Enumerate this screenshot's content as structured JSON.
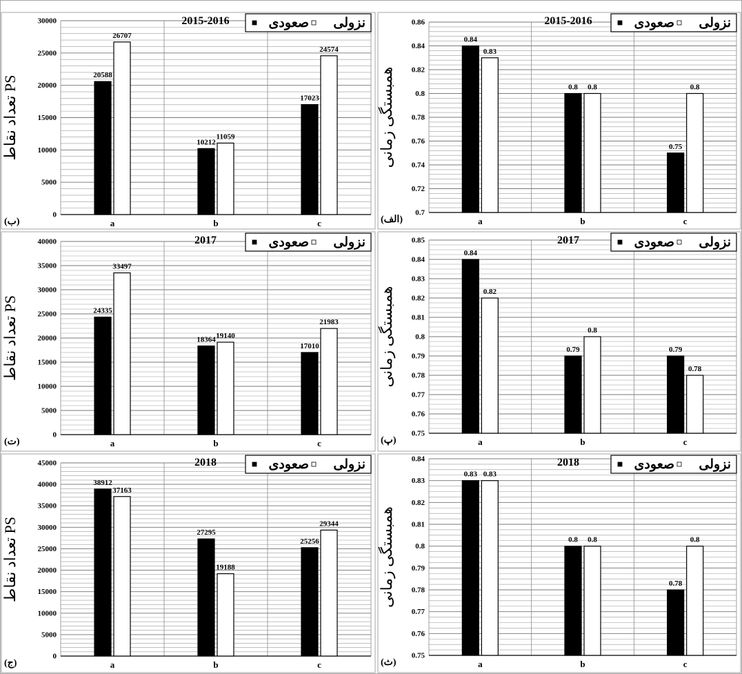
{
  "legend_labels": {
    "desc": "نزولی",
    "asc": "صعودی"
  },
  "colors": {
    "desc": "#000000",
    "asc": "#ffffff",
    "frame": "#a6a6a6",
    "grid": "#9a9a9a"
  },
  "chart_data": [
    {
      "type": "bar",
      "id": "count-2015",
      "panel_label": "(ب)",
      "title": "2015-2016",
      "ylabel": "تعداد نقاط PS",
      "categories": [
        "a",
        "b",
        "c"
      ],
      "series": [
        {
          "name": "نزولی",
          "values": [
            20588,
            10212,
            17023
          ]
        },
        {
          "name": "صعودی",
          "values": [
            26707,
            11059,
            24574
          ]
        }
      ],
      "value_labels": [
        [
          "20588",
          "10212",
          "17023"
        ],
        [
          "26707",
          "11059",
          "24574"
        ]
      ],
      "ylim": [
        0,
        30000
      ],
      "yticks": [
        0,
        5000,
        10000,
        15000,
        20000,
        25000,
        30000
      ],
      "ytick_labels": [
        "0",
        "5000",
        "10000",
        "15000",
        "20000",
        "25000",
        "30000"
      ],
      "grid_step": 1000,
      "legend_position": "top-right",
      "grid": true
    },
    {
      "type": "bar",
      "id": "corr-2015",
      "panel_label": "(الف)",
      "title": "2015-2016",
      "ylabel": "همبستگی زمانی",
      "categories": [
        "a",
        "b",
        "c"
      ],
      "series": [
        {
          "name": "نزولی",
          "values": [
            0.84,
            0.8,
            0.75
          ]
        },
        {
          "name": "صعودی",
          "values": [
            0.83,
            0.8,
            0.8
          ]
        }
      ],
      "value_labels": [
        [
          "0.84",
          "0.8",
          "0.75"
        ],
        [
          "0.83",
          "0.8",
          "0.8"
        ]
      ],
      "ylim": [
        0.7,
        0.86
      ],
      "yticks": [
        0.7,
        0.72,
        0.74,
        0.76,
        0.78,
        0.8,
        0.82,
        0.84,
        0.86
      ],
      "ytick_labels": [
        "0.7",
        "0.72",
        "0.74",
        "0.76",
        "0.78",
        "0.8",
        "0.82",
        "0.84",
        "0.86"
      ],
      "grid_step": 0.004,
      "legend_position": "top-right",
      "grid": true
    },
    {
      "type": "bar",
      "id": "count-2017",
      "panel_label": "(ت)",
      "title": "2017",
      "ylabel": "تعداد نقاط PS",
      "categories": [
        "a",
        "b",
        "c"
      ],
      "series": [
        {
          "name": "نزولی",
          "values": [
            24335,
            18364,
            17010
          ]
        },
        {
          "name": "صعودی",
          "values": [
            33497,
            19140,
            21983
          ]
        }
      ],
      "value_labels": [
        [
          "24335",
          "18364",
          "17010"
        ],
        [
          "33497",
          "19140",
          "21983"
        ]
      ],
      "ylim": [
        0,
        40000
      ],
      "yticks": [
        0,
        5000,
        10000,
        15000,
        20000,
        25000,
        30000,
        35000,
        40000
      ],
      "ytick_labels": [
        "0",
        "5000",
        "10000",
        "15000",
        "20000",
        "25000",
        "30000",
        "35000",
        "40000"
      ],
      "grid_step": 1000,
      "legend_position": "top-right",
      "grid": true
    },
    {
      "type": "bar",
      "id": "corr-2017",
      "panel_label": "(پ)",
      "title": "2017",
      "ylabel": "همبستگی زمانی",
      "categories": [
        "a",
        "b",
        "c"
      ],
      "series": [
        {
          "name": "نزولی",
          "values": [
            0.84,
            0.79,
            0.79
          ]
        },
        {
          "name": "صعودی",
          "values": [
            0.82,
            0.8,
            0.78
          ]
        }
      ],
      "value_labels": [
        [
          "0.84",
          "0.79",
          "0.79"
        ],
        [
          "0.82",
          "0.8",
          "0.78"
        ]
      ],
      "ylim": [
        0.75,
        0.85
      ],
      "yticks": [
        0.75,
        0.76,
        0.77,
        0.78,
        0.79,
        0.8,
        0.81,
        0.82,
        0.83,
        0.84,
        0.85
      ],
      "ytick_labels": [
        "0.75",
        "0.76",
        "0.77",
        "0.78",
        "0.79",
        "0.8",
        "0.81",
        "0.82",
        "0.83",
        "0.84",
        "0.85"
      ],
      "grid_step": 0.0025,
      "legend_position": "top-right",
      "grid": true
    },
    {
      "type": "bar",
      "id": "count-2018",
      "panel_label": "(ج)",
      "title": "2018",
      "ylabel": "تعداد نقاط PS",
      "categories": [
        "a",
        "b",
        "c"
      ],
      "series": [
        {
          "name": "نزولی",
          "values": [
            38912,
            27295,
            25256
          ]
        },
        {
          "name": "صعودی",
          "values": [
            37163,
            19188,
            29344
          ]
        }
      ],
      "value_labels": [
        [
          "38912",
          "27295",
          "25256"
        ],
        [
          "37163",
          "19188",
          "29344"
        ]
      ],
      "ylim": [
        0,
        45000
      ],
      "yticks": [
        0,
        5000,
        10000,
        15000,
        20000,
        25000,
        30000,
        35000,
        40000,
        45000
      ],
      "ytick_labels": [
        "0",
        "5000",
        "10000",
        "15000",
        "20000",
        "25000",
        "30000",
        "35000",
        "40000",
        "45000"
      ],
      "grid_step": 1000,
      "legend_position": "top-right",
      "grid": true
    },
    {
      "type": "bar",
      "id": "corr-2018",
      "panel_label": "(ث)",
      "title": "2018",
      "ylabel": "همبستگی زمانی",
      "categories": [
        "a",
        "b",
        "c"
      ],
      "series": [
        {
          "name": "نزولی",
          "values": [
            0.83,
            0.8,
            0.78
          ]
        },
        {
          "name": "صعودی",
          "values": [
            0.83,
            0.8,
            0.8
          ]
        }
      ],
      "value_labels": [
        [
          "0.83",
          "0.8",
          "0.78"
        ],
        [
          "0.83",
          "0.8",
          "0.8"
        ]
      ],
      "ylim": [
        0.75,
        0.84
      ],
      "yticks": [
        0.75,
        0.76,
        0.77,
        0.78,
        0.79,
        0.8,
        0.81,
        0.82,
        0.83,
        0.84
      ],
      "ytick_labels": [
        "0.75",
        "0.76",
        "0.77",
        "0.78",
        "0.79",
        "0.8",
        "0.81",
        "0.82",
        "0.83",
        "0.84"
      ],
      "grid_step": 0.0025,
      "legend_position": "top-right",
      "grid": true
    }
  ]
}
